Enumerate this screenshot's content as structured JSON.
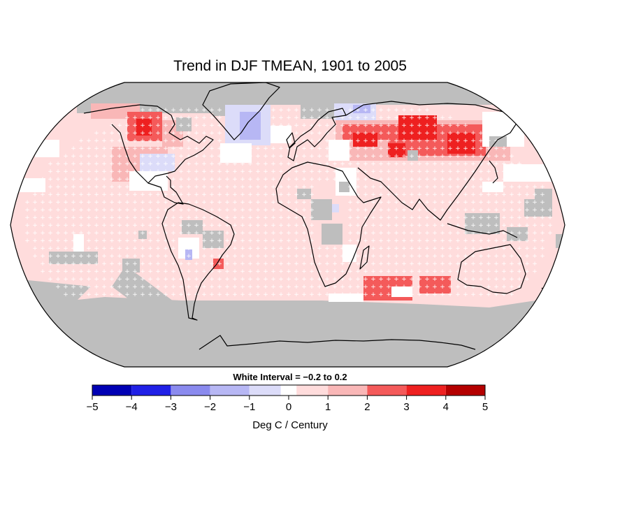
{
  "map": {
    "title": "Trend in DJF TMEAN, 1901 to 2005",
    "projection": "Robinson",
    "missing_data_color": "#bebebe",
    "significance_marker": "+",
    "dominant_pattern": "warming across most land and ocean; strongest over northern Eurasia and northern North America; weak cooling over Greenland, parts of the eastern USA and central Africa"
  },
  "legend": {
    "interval_note": "White Interval = −0.2 to 0.2",
    "units_label": "Deg C / Century",
    "tick_labels": [
      "−5",
      "−4",
      "−3",
      "−2",
      "−1",
      "0",
      "1",
      "2",
      "3",
      "4",
      "5"
    ],
    "bins": [
      {
        "from": -5,
        "to": -4,
        "color": "#0000b4"
      },
      {
        "from": -4,
        "to": -3,
        "color": "#2020e6"
      },
      {
        "from": -3,
        "to": -2,
        "color": "#8a8aee"
      },
      {
        "from": -2,
        "to": -1,
        "color": "#b7b7f4"
      },
      {
        "from": -1,
        "to": -0.2,
        "color": "#dcdcf9"
      },
      {
        "from": -0.2,
        "to": 0.2,
        "color": "#ffffff"
      },
      {
        "from": 0.2,
        "to": 1,
        "color": "#ffdcdc"
      },
      {
        "from": 1,
        "to": 2,
        "color": "#f9b7b7"
      },
      {
        "from": 2,
        "to": 3,
        "color": "#f45a5a"
      },
      {
        "from": 3,
        "to": 4,
        "color": "#ee2020"
      },
      {
        "from": 4,
        "to": 5,
        "color": "#b40000"
      }
    ]
  }
}
